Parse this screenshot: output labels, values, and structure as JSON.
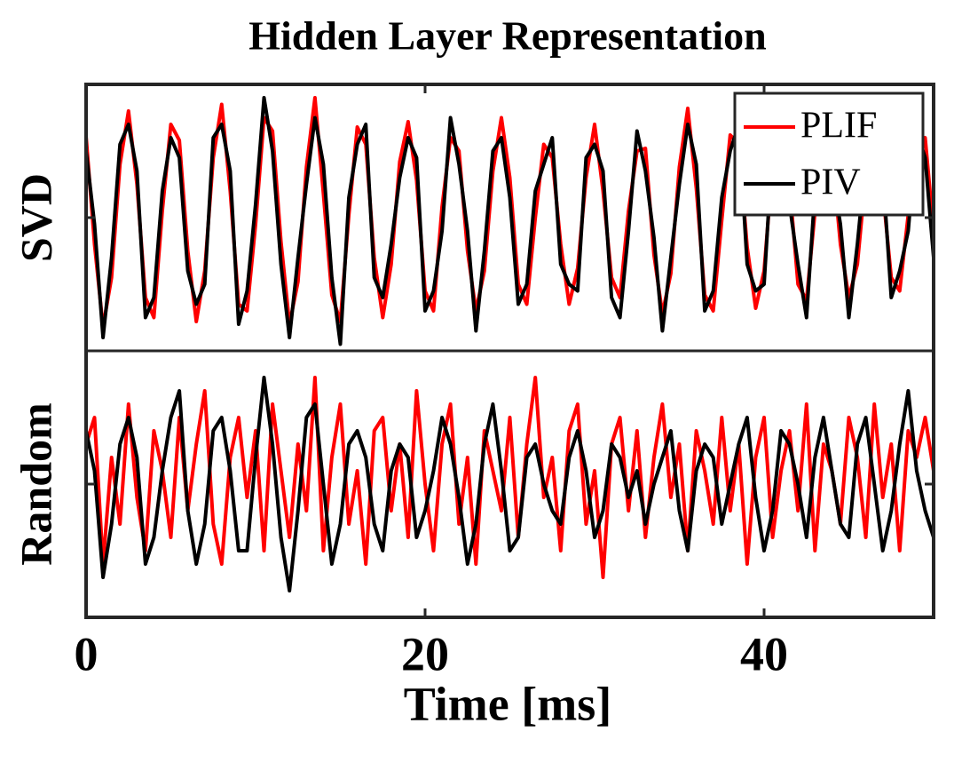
{
  "chart_data": {
    "type": "line",
    "title": "Hidden Layer Representation",
    "xlabel": "Time [ms]",
    "xlim": [
      0,
      50
    ],
    "xticks": [
      0,
      20,
      40
    ],
    "legend": "upper right",
    "x": [
      0,
      0.5,
      1,
      1.5,
      2,
      2.5,
      3,
      3.5,
      4,
      4.5,
      5,
      5.5,
      6,
      6.5,
      7,
      7.5,
      8,
      8.5,
      9,
      9.5,
      10,
      10.5,
      11,
      11.5,
      12,
      12.5,
      13,
      13.5,
      14,
      14.5,
      15,
      15.5,
      16,
      16.5,
      17,
      17.5,
      18,
      18.5,
      19,
      19.5,
      20,
      20.5,
      21,
      21.5,
      22,
      22.5,
      23,
      23.5,
      24,
      24.5,
      25,
      25.5,
      26,
      26.5,
      27,
      27.5,
      28,
      28.5,
      29,
      29.5,
      30,
      30.5,
      31,
      31.5,
      32,
      32.5,
      33,
      33.5,
      34,
      34.5,
      35,
      35.5,
      36,
      36.5,
      37,
      37.5,
      38,
      38.5,
      39,
      39.5,
      40,
      40.5,
      41,
      41.5,
      42,
      42.5,
      43,
      43.5,
      44,
      44.5,
      45,
      45.5,
      46,
      46.5,
      47,
      47.5,
      48,
      48.5,
      49,
      49.5,
      50
    ],
    "panels": [
      {
        "ylabel": "SVD",
        "ylim": [
          -1,
          1
        ],
        "yticks": [
          0
        ],
        "series": [
          {
            "name": "PLIF",
            "color": "#ff0000",
            "values": [
              0.61,
              -0.2,
              -0.82,
              -0.45,
              0.4,
              0.8,
              0.25,
              -0.6,
              -0.75,
              0.05,
              0.7,
              0.58,
              -0.25,
              -0.78,
              -0.4,
              0.45,
              0.85,
              0.2,
              -0.65,
              -0.7,
              -0.05,
              0.75,
              0.65,
              -0.18,
              -0.8,
              -0.48,
              0.38,
              0.9,
              0.18,
              -0.58,
              -0.78,
              0.02,
              0.68,
              0.55,
              -0.3,
              -0.75,
              -0.35,
              0.42,
              0.72,
              0.28,
              -0.55,
              -0.7,
              0.08,
              0.6,
              0.5,
              -0.25,
              -0.7,
              -0.4,
              0.35,
              0.75,
              0.3,
              -0.5,
              -0.65,
              0,
              0.55,
              0.45,
              -0.2,
              -0.65,
              -0.38,
              0.3,
              0.7,
              0.2,
              -0.45,
              -0.6,
              0.05,
              0.5,
              0.52,
              -0.28,
              -0.72,
              -0.42,
              0.38,
              0.82,
              0.22,
              -0.58,
              -0.7,
              -0.02,
              0.62,
              0.55,
              -0.22,
              -0.68,
              -0.4,
              0.4,
              0.78,
              0.25,
              -0.5,
              -0.62,
              0.04,
              0.58,
              0.5,
              -0.2,
              -0.6,
              -0.35,
              0.32,
              0.68,
              0.2,
              -0.45,
              -0.55,
              0.02,
              0.5,
              0.6,
              -0.1
            ]
          },
          {
            "name": "PIV",
            "color": "#000000",
            "values": [
              0.5,
              -0.05,
              -0.9,
              -0.3,
              0.55,
              0.7,
              0.35,
              -0.75,
              -0.6,
              0.2,
              0.6,
              0.45,
              -0.4,
              -0.65,
              -0.5,
              0.6,
              0.7,
              0.35,
              -0.8,
              -0.55,
              0.1,
              0.9,
              0.5,
              -0.35,
              -0.9,
              -0.3,
              0.25,
              0.75,
              0.4,
              -0.45,
              -0.95,
              0.15,
              0.55,
              0.7,
              -0.45,
              -0.6,
              -0.2,
              0.3,
              0.6,
              0.45,
              -0.7,
              -0.55,
              -0.1,
              0.75,
              0.4,
              -0.1,
              -0.85,
              -0.25,
              0.5,
              0.6,
              0.15,
              -0.65,
              -0.5,
              0.2,
              0.4,
              0.6,
              -0.35,
              -0.5,
              -0.55,
              0.45,
              0.55,
              0.35,
              -0.6,
              -0.75,
              -0.1,
              0.65,
              0.35,
              -0.15,
              -0.85,
              -0.3,
              0.25,
              0.7,
              0.4,
              -0.7,
              -0.55,
              0.15,
              0.5,
              0.7,
              -0.35,
              -0.55,
              -0.5,
              0.55,
              0.65,
              0.1,
              -0.35,
              -0.75,
              0.2,
              0.45,
              0.35,
              -0.05,
              -0.75,
              -0.2,
              0.45,
              0.5,
              0.35,
              -0.6,
              -0.4,
              -0.1,
              0.65,
              0.45,
              -0.3
            ]
          }
        ]
      },
      {
        "ylabel": "Random",
        "ylim": [
          -1,
          1
        ],
        "yticks": [
          0
        ],
        "series": [
          {
            "color": "#ff0000",
            "values": [
              0.3,
              0.5,
              -0.6,
              0.2,
              -0.3,
              0.6,
              -0.1,
              -0.5,
              0.4,
              0.1,
              -0.4,
              0.5,
              -0.2,
              0.3,
              0.7,
              -0.3,
              -0.6,
              0.2,
              0.5,
              -0.1,
              0.4,
              -0.5,
              0.6,
              0.1,
              -0.4,
              0.3,
              -0.2,
              0.8,
              -0.5,
              0.2,
              0.6,
              -0.3,
              0.1,
              -0.6,
              0.4,
              0.5,
              -0.2,
              0.3,
              -0.4,
              0.7,
              0,
              -0.5,
              0.3,
              0.6,
              -0.3,
              0.2,
              -0.6,
              0.4,
              0.1,
              -0.2,
              0.5,
              -0.4,
              0.3,
              0.8,
              -0.1,
              0.2,
              -0.5,
              0.4,
              0.6,
              -0.3,
              0.1,
              -0.7,
              0.3,
              0.5,
              -0.2,
              0.4,
              -0.4,
              0.2,
              0.6,
              -0.1,
              0.3,
              -0.5,
              0.4,
              0.1,
              -0.3,
              0.5,
              -0.2,
              0.3,
              -0.6,
              0.2,
              0.5,
              -0.4,
              0.1,
              0.4,
              -0.2,
              0.6,
              -0.5,
              0.3,
              0.1,
              -0.3,
              0.5,
              0.2,
              -0.4,
              0.6,
              -0.1,
              0.3,
              -0.5,
              0.4,
              0.2,
              0.5,
              0.1
            ]
          },
          {
            "color": "#000000",
            "values": [
              0.4,
              0.1,
              -0.7,
              -0.3,
              0.3,
              0.5,
              0.2,
              -0.6,
              -0.4,
              0.1,
              0.5,
              0.7,
              -0.2,
              -0.6,
              -0.3,
              0.4,
              0.5,
              0.1,
              -0.5,
              -0.5,
              0.2,
              0.8,
              0.3,
              -0.4,
              -0.8,
              -0.2,
              0.5,
              0.6,
              0,
              -0.6,
              -0.3,
              0.3,
              0.4,
              0.2,
              -0.3,
              -0.5,
              0.1,
              0.3,
              0.2,
              -0.4,
              -0.2,
              0.1,
              0.5,
              0.3,
              -0.1,
              -0.6,
              -0.3,
              0.3,
              0.6,
              0.1,
              -0.5,
              -0.4,
              0.2,
              0.3,
              0,
              -0.2,
              -0.3,
              0.2,
              0.4,
              0.1,
              -0.4,
              -0.2,
              0.3,
              0.2,
              -0.1,
              0.1,
              -0.3,
              0,
              0.2,
              0.4,
              -0.2,
              -0.5,
              0.1,
              0.3,
              0.2,
              -0.3,
              0,
              0.3,
              0.5,
              -0.1,
              -0.5,
              -0.2,
              0.4,
              0.3,
              0,
              -0.4,
              0.2,
              0.5,
              0.1,
              -0.3,
              -0.4,
              0.3,
              0.5,
              0,
              -0.5,
              -0.2,
              0.3,
              0.7,
              0.1,
              -0.2,
              -0.4
            ]
          }
        ]
      }
    ]
  }
}
